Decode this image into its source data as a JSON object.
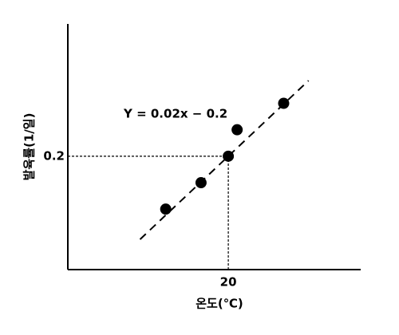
{
  "chart_data": {
    "type": "scatter",
    "x_label": "온도(℃)",
    "y_label": "발육률(1/일)",
    "annotation": "Y = 0.02x − 0.2",
    "x": [
      12.2,
      16.6,
      20,
      21.1,
      26.9
    ],
    "values": [
      0.06,
      0.13,
      0.2,
      0.27,
      0.34
    ],
    "color": "#000000",
    "fit_line": {
      "x": [
        9,
        30
      ],
      "values": [
        -0.02,
        0.4
      ]
    },
    "xlim": [
      0,
      36.5
    ],
    "ylim": [
      -0.1,
      0.55
    ],
    "xticks": [
      20
    ],
    "yticks": [
      0.2
    ],
    "guides": true
  }
}
